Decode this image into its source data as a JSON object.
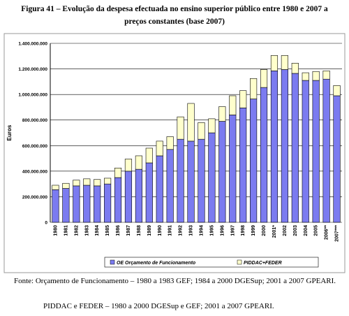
{
  "chart_data": {
    "type": "stacked-bar",
    "title": "Figura 41 – Evolução da despesa efectuada no ensino superior público entre 1980 e 2007 a preços constantes (base 2007)",
    "y_label": "Euros",
    "categories": [
      "1980",
      "1981",
      "1982",
      "1983",
      "1984",
      "1985",
      "1986",
      "1987",
      "1988",
      "1989",
      "1990",
      "1991",
      "1992",
      "1993",
      "1994",
      "1995",
      "1996",
      "1997",
      "1998",
      "1999",
      "2000",
      "2001*",
      "2002",
      "2003",
      "2004",
      "2005",
      "2006**",
      "2007***"
    ],
    "series": [
      {
        "name": "OE Orçamento de Funcionamento",
        "color": "#7b7bf0",
        "values": [
          255000000,
          265000000,
          285000000,
          290000000,
          285000000,
          300000000,
          350000000,
          400000000,
          415000000,
          465000000,
          520000000,
          570000000,
          650000000,
          635000000,
          650000000,
          700000000,
          790000000,
          840000000,
          895000000,
          965000000,
          1055000000,
          1185000000,
          1195000000,
          1165000000,
          1110000000,
          1110000000,
          1120000000,
          990000000
        ]
      },
      {
        "name": "PIDDAC+FEDER",
        "color": "#ffffcc",
        "values": [
          35000000,
          40000000,
          45000000,
          50000000,
          50000000,
          45000000,
          75000000,
          95000000,
          105000000,
          115000000,
          115000000,
          100000000,
          175000000,
          295000000,
          130000000,
          110000000,
          115000000,
          150000000,
          135000000,
          160000000,
          140000000,
          120000000,
          110000000,
          80000000,
          60000000,
          70000000,
          65000000,
          80000000
        ]
      }
    ],
    "ylim": [
      0,
      1400000000
    ],
    "yticks": [
      0,
      {
        "value": 200000000,
        "label": "200.000.000"
      },
      {
        "value": 400000000,
        "label": "400.000.000"
      },
      {
        "value": 600000000,
        "label": "600.000.000"
      },
      {
        "value": 800000000,
        "label": "800.000.000"
      },
      {
        "value": 1000000000,
        "label": "1.000.000.000"
      },
      {
        "value": 1200000000,
        "label": "1.200.000.000"
      },
      {
        "value": 1400000000,
        "label": "1.400.000.000"
      }
    ],
    "grid": true,
    "legend": "bottom"
  },
  "notes": [
    "Fonte: Orçamento de Funcionamento – 1980 a 1983 GEF; 1984 a 2000 DGESup; 2001 a 2007 GPEARI.",
    "PIDDAC e FEDER – 1980 a 2000 DGESup e GEF; 2001 a 2007 GPEARI."
  ]
}
